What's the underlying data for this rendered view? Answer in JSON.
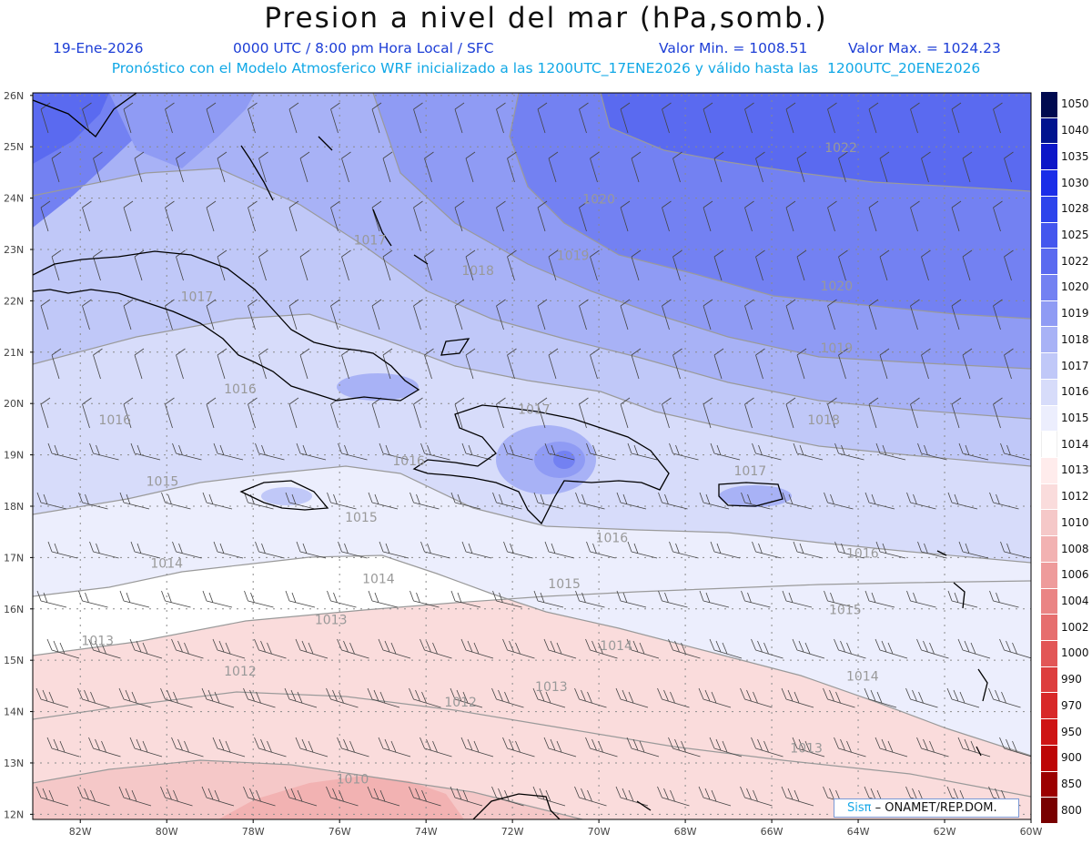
{
  "header": {
    "title": "Presion a nivel del mar (hPa,somb.)",
    "date": "19-Ene-2026",
    "time_info": "0000 UTC / 8:00 pm Hora Local / SFC",
    "min_label": "Valor Min. = 1008.51",
    "max_label": "Valor Max. = 1024.23",
    "model_info": "Pronóstico con el Modelo Atmosferico WRF inicializado a las 1200UTC_17ENE2026 y válido hasta las  1200UTC_20ENE2026"
  },
  "axes": {
    "lat_labels": [
      "26N",
      "25N",
      "24N",
      "23N",
      "22N",
      "21N",
      "20N",
      "19N",
      "18N",
      "17N",
      "16N",
      "15N",
      "14N",
      "13N",
      "12N"
    ],
    "lon_labels": [
      "82W",
      "80W",
      "78W",
      "76W",
      "74W",
      "72W",
      "70W",
      "68W",
      "66W",
      "64W",
      "62W",
      "60W"
    ]
  },
  "contour_labels": [
    {
      "text": "1022",
      "lon": -64.4,
      "lat": 24.9
    },
    {
      "text": "1020",
      "lon": -70.0,
      "lat": 23.9
    },
    {
      "text": "1020",
      "lon": -64.5,
      "lat": 22.2
    },
    {
      "text": "1019",
      "lon": -70.6,
      "lat": 22.8
    },
    {
      "text": "1019",
      "lon": -64.5,
      "lat": 21.0
    },
    {
      "text": "1018",
      "lon": -72.8,
      "lat": 22.5
    },
    {
      "text": "1018",
      "lon": -64.8,
      "lat": 19.6
    },
    {
      "text": "1017",
      "lon": -75.3,
      "lat": 23.1
    },
    {
      "text": "1017",
      "lon": -79.3,
      "lat": 22.0
    },
    {
      "text": "1017",
      "lon": -66.5,
      "lat": 18.6
    },
    {
      "text": "1017",
      "lon": -71.5,
      "lat": 19.8
    },
    {
      "text": "1016",
      "lon": -78.3,
      "lat": 20.2
    },
    {
      "text": "1016",
      "lon": -81.2,
      "lat": 19.6
    },
    {
      "text": "1016",
      "lon": -74.4,
      "lat": 18.8
    },
    {
      "text": "1016",
      "lon": -69.7,
      "lat": 17.3
    },
    {
      "text": "1016",
      "lon": -63.9,
      "lat": 17.0
    },
    {
      "text": "1015",
      "lon": -80.1,
      "lat": 18.4
    },
    {
      "text": "1015",
      "lon": -75.5,
      "lat": 17.7
    },
    {
      "text": "1015",
      "lon": -70.8,
      "lat": 16.4
    },
    {
      "text": "1015",
      "lon": -64.3,
      "lat": 15.9
    },
    {
      "text": "1014",
      "lon": -80.0,
      "lat": 16.8
    },
    {
      "text": "1014",
      "lon": -75.1,
      "lat": 16.5
    },
    {
      "text": "1014",
      "lon": -69.6,
      "lat": 15.2
    },
    {
      "text": "1014",
      "lon": -63.9,
      "lat": 14.6
    },
    {
      "text": "1013",
      "lon": -81.6,
      "lat": 15.3
    },
    {
      "text": "1013",
      "lon": -76.2,
      "lat": 15.7
    },
    {
      "text": "1013",
      "lon": -71.1,
      "lat": 14.4
    },
    {
      "text": "1013",
      "lon": -65.2,
      "lat": 13.2
    },
    {
      "text": "1012",
      "lon": -78.3,
      "lat": 14.7
    },
    {
      "text": "1012",
      "lon": -73.2,
      "lat": 14.1
    },
    {
      "text": "1010",
      "lon": -75.7,
      "lat": 12.6
    }
  ],
  "legend": {
    "levels": [
      "1050",
      "1040",
      "1035",
      "1030",
      "1028",
      "1025",
      "1022",
      "1020",
      "1019",
      "1018",
      "1017",
      "1016",
      "1015",
      "1014",
      "1013",
      "1012",
      "1010",
      "1008",
      "1006",
      "1004",
      "1002",
      "1000",
      "990",
      "970",
      "950",
      "900",
      "850",
      "800"
    ],
    "colors": [
      "#000a50",
      "#00138f",
      "#0c16c8",
      "#1a2de8",
      "#2d44ec",
      "#4456ee",
      "#5a6af0",
      "#7381f2",
      "#8f9bf4",
      "#a8b2f6",
      "#c0c8f8",
      "#d7dcfa",
      "#eceefd",
      "#ffffff",
      "#ffecec",
      "#fadcdc",
      "#f5c8c8",
      "#f2b2b2",
      "#ee9b9b",
      "#ea8484",
      "#e66e6e",
      "#e25656",
      "#dd3e3e",
      "#d82828",
      "#ce1414",
      "#bd0606",
      "#9c0000",
      "#780000"
    ]
  },
  "credit": {
    "brand": "Sisπ",
    "text": " – ONAMET/REP.DOM."
  }
}
